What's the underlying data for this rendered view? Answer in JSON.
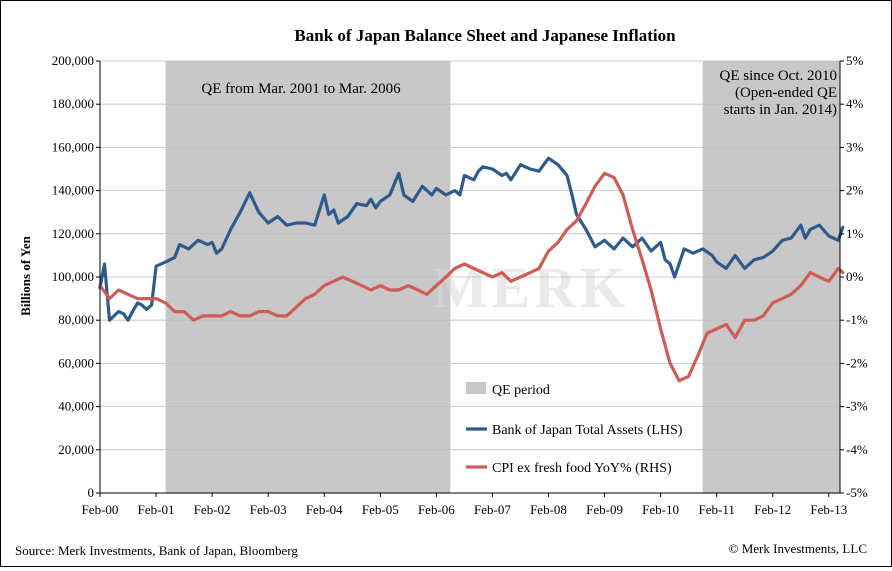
{
  "chart_data": {
    "type": "line",
    "title": "Bank of Japan Balance Sheet and Japanese Inflation",
    "xlabel": "",
    "ylabel": "Billions of Yen",
    "ylabel_right": "",
    "x_ticks": [
      "Feb-00",
      "Feb-01",
      "Feb-02",
      "Feb-03",
      "Feb-04",
      "Feb-05",
      "Feb-06",
      "Feb-07",
      "Feb-08",
      "Feb-09",
      "Feb-10",
      "Feb-11",
      "Feb-12",
      "Feb-13"
    ],
    "y_ticks_left": [
      "0",
      "20,000",
      "40,000",
      "60,000",
      "80,000",
      "100,000",
      "120,000",
      "140,000",
      "160,000",
      "180,000",
      "200,000"
    ],
    "y_ticks_right": [
      "-5%",
      "-4%",
      "-3%",
      "-2%",
      "-1%",
      "0%",
      "1%",
      "2%",
      "3%",
      "4%",
      "5%"
    ],
    "ylim_left": [
      0,
      200000
    ],
    "ylim_right": [
      -5,
      5
    ],
    "xlim": [
      2000.0,
      2013.2
    ],
    "grid": true,
    "legend_position": "bottom-center",
    "shaded_periods": [
      {
        "start": 2001.17,
        "end": 2006.25,
        "label": "QE from Mar. 2001 to Mar. 2006"
      },
      {
        "start": 2010.75,
        "end": 2013.2,
        "label_lines": [
          "QE since Oct. 2010",
          "(Open-ended QE",
          "starts in Jan. 2014)"
        ]
      }
    ],
    "legend": [
      {
        "name": "QE period",
        "kind": "area",
        "color": "#c8c8c8"
      },
      {
        "name": "Bank of Japan Total Assets (LHS)",
        "kind": "line",
        "color": "#2e5b8c"
      },
      {
        "name": "CPI ex fresh food YoY% (RHS)",
        "kind": "line",
        "color": "#cf5c55"
      }
    ],
    "series": [
      {
        "name": "Bank of Japan Total Assets (LHS)",
        "axis": "left",
        "color": "#2e5b8c",
        "points": [
          [
            2000.0,
            95000
          ],
          [
            2000.08,
            106000
          ],
          [
            2000.17,
            80000
          ],
          [
            2000.25,
            82000
          ],
          [
            2000.33,
            84000
          ],
          [
            2000.42,
            83000
          ],
          [
            2000.5,
            80000
          ],
          [
            2000.58,
            84000
          ],
          [
            2000.67,
            88000
          ],
          [
            2000.75,
            87000
          ],
          [
            2000.83,
            85000
          ],
          [
            2000.92,
            87000
          ],
          [
            2001.0,
            105000
          ],
          [
            2001.17,
            107000
          ],
          [
            2001.33,
            109000
          ],
          [
            2001.42,
            115000
          ],
          [
            2001.58,
            113000
          ],
          [
            2001.75,
            117000
          ],
          [
            2001.92,
            115000
          ],
          [
            2002.0,
            116000
          ],
          [
            2002.08,
            111000
          ],
          [
            2002.17,
            113000
          ],
          [
            2002.33,
            122000
          ],
          [
            2002.5,
            130000
          ],
          [
            2002.67,
            139000
          ],
          [
            2002.83,
            130000
          ],
          [
            2003.0,
            125000
          ],
          [
            2003.17,
            128000
          ],
          [
            2003.33,
            124000
          ],
          [
            2003.5,
            125000
          ],
          [
            2003.67,
            125000
          ],
          [
            2003.83,
            124000
          ],
          [
            2004.0,
            138000
          ],
          [
            2004.08,
            129000
          ],
          [
            2004.17,
            131000
          ],
          [
            2004.25,
            125000
          ],
          [
            2004.42,
            128000
          ],
          [
            2004.58,
            134000
          ],
          [
            2004.75,
            133000
          ],
          [
            2004.83,
            136000
          ],
          [
            2004.92,
            132000
          ],
          [
            2005.0,
            135000
          ],
          [
            2005.17,
            138000
          ],
          [
            2005.33,
            148000
          ],
          [
            2005.42,
            138000
          ],
          [
            2005.58,
            135000
          ],
          [
            2005.75,
            142000
          ],
          [
            2005.92,
            138000
          ],
          [
            2006.0,
            141000
          ],
          [
            2006.17,
            138000
          ],
          [
            2006.33,
            140000
          ],
          [
            2006.42,
            138000
          ],
          [
            2006.5,
            147000
          ],
          [
            2006.67,
            145000
          ],
          [
            2006.75,
            149000
          ],
          [
            2006.83,
            151000
          ],
          [
            2007.0,
            150000
          ],
          [
            2007.17,
            147000
          ],
          [
            2007.25,
            148000
          ],
          [
            2007.33,
            145000
          ],
          [
            2007.5,
            152000
          ],
          [
            2007.67,
            150000
          ],
          [
            2007.83,
            149000
          ],
          [
            2008.0,
            155000
          ],
          [
            2008.17,
            152000
          ],
          [
            2008.33,
            147000
          ],
          [
            2008.42,
            138000
          ],
          [
            2008.5,
            129000
          ],
          [
            2008.67,
            122000
          ],
          [
            2008.83,
            114000
          ],
          [
            2009.0,
            117000
          ],
          [
            2009.17,
            113000
          ],
          [
            2009.33,
            118000
          ],
          [
            2009.5,
            114000
          ],
          [
            2009.67,
            118000
          ],
          [
            2009.83,
            112000
          ],
          [
            2010.0,
            116000
          ],
          [
            2010.08,
            108000
          ],
          [
            2010.17,
            106000
          ],
          [
            2010.25,
            100000
          ],
          [
            2010.42,
            113000
          ],
          [
            2010.58,
            111000
          ],
          [
            2010.75,
            113000
          ],
          [
            2010.92,
            110000
          ],
          [
            2011.0,
            107000
          ],
          [
            2011.17,
            104000
          ],
          [
            2011.33,
            110000
          ],
          [
            2011.5,
            104000
          ],
          [
            2011.67,
            108000
          ],
          [
            2011.83,
            109000
          ],
          [
            2012.0,
            112000
          ],
          [
            2012.17,
            117000
          ],
          [
            2012.33,
            118000
          ],
          [
            2012.5,
            124000
          ],
          [
            2012.58,
            118000
          ],
          [
            2012.67,
            122000
          ],
          [
            2012.83,
            124000
          ],
          [
            2013.0,
            119000
          ],
          [
            2013.17,
            117000
          ],
          [
            2013.25,
            123000
          ]
        ]
      },
      {
        "name": "CPI ex fresh food YoY% (RHS)",
        "axis": "right",
        "color": "#cf5c55",
        "points": [
          [
            2000.0,
            -0.2
          ],
          [
            2000.17,
            -0.5
          ],
          [
            2000.33,
            -0.3
          ],
          [
            2000.5,
            -0.4
          ],
          [
            2000.67,
            -0.5
          ],
          [
            2000.83,
            -0.5
          ],
          [
            2001.0,
            -0.5
          ],
          [
            2001.17,
            -0.6
          ],
          [
            2001.33,
            -0.8
          ],
          [
            2001.5,
            -0.8
          ],
          [
            2001.67,
            -1.0
          ],
          [
            2001.83,
            -0.9
          ],
          [
            2002.0,
            -0.9
          ],
          [
            2002.17,
            -0.9
          ],
          [
            2002.33,
            -0.8
          ],
          [
            2002.5,
            -0.9
          ],
          [
            2002.67,
            -0.9
          ],
          [
            2002.83,
            -0.8
          ],
          [
            2003.0,
            -0.8
          ],
          [
            2003.17,
            -0.9
          ],
          [
            2003.33,
            -0.9
          ],
          [
            2003.5,
            -0.7
          ],
          [
            2003.67,
            -0.5
          ],
          [
            2003.83,
            -0.4
          ],
          [
            2004.0,
            -0.2
          ],
          [
            2004.17,
            -0.1
          ],
          [
            2004.33,
            0.0
          ],
          [
            2004.5,
            -0.1
          ],
          [
            2004.67,
            -0.2
          ],
          [
            2004.83,
            -0.3
          ],
          [
            2005.0,
            -0.2
          ],
          [
            2005.17,
            -0.3
          ],
          [
            2005.33,
            -0.3
          ],
          [
            2005.5,
            -0.2
          ],
          [
            2005.67,
            -0.3
          ],
          [
            2005.83,
            -0.4
          ],
          [
            2006.0,
            -0.2
          ],
          [
            2006.17,
            0.0
          ],
          [
            2006.33,
            0.2
          ],
          [
            2006.5,
            0.3
          ],
          [
            2006.67,
            0.2
          ],
          [
            2006.83,
            0.1
          ],
          [
            2007.0,
            0.0
          ],
          [
            2007.17,
            0.1
          ],
          [
            2007.33,
            -0.1
          ],
          [
            2007.5,
            0.0
          ],
          [
            2007.67,
            0.1
          ],
          [
            2007.83,
            0.2
          ],
          [
            2008.0,
            0.6
          ],
          [
            2008.17,
            0.8
          ],
          [
            2008.33,
            1.1
          ],
          [
            2008.5,
            1.3
          ],
          [
            2008.67,
            1.7
          ],
          [
            2008.83,
            2.1
          ],
          [
            2009.0,
            2.4
          ],
          [
            2009.17,
            2.3
          ],
          [
            2009.33,
            1.9
          ],
          [
            2009.5,
            1.1
          ],
          [
            2009.67,
            0.4
          ],
          [
            2009.83,
            -0.3
          ],
          [
            2010.0,
            -1.2
          ],
          [
            2010.17,
            -2.0
          ],
          [
            2010.33,
            -2.4
          ],
          [
            2010.5,
            -2.3
          ],
          [
            2010.67,
            -1.8
          ],
          [
            2010.83,
            -1.3
          ],
          [
            2011.0,
            -1.2
          ],
          [
            2011.17,
            -1.1
          ],
          [
            2011.33,
            -1.4
          ],
          [
            2011.5,
            -1.0
          ],
          [
            2011.67,
            -1.0
          ],
          [
            2011.83,
            -0.9
          ],
          [
            2012.0,
            -0.6
          ],
          [
            2012.17,
            -0.5
          ],
          [
            2012.33,
            -0.4
          ],
          [
            2012.5,
            -0.2
          ],
          [
            2012.67,
            0.1
          ],
          [
            2012.83,
            0.0
          ],
          [
            2013.0,
            -0.1
          ],
          [
            2013.17,
            0.2
          ],
          [
            2013.25,
            0.1
          ]
        ]
      }
    ]
  },
  "watermark": {
    "text": "MERK"
  },
  "footer": {
    "source": "Source: Merk Investments, Bank of Japan, Bloomberg",
    "copyright": "© Merk Investments, LLC"
  }
}
